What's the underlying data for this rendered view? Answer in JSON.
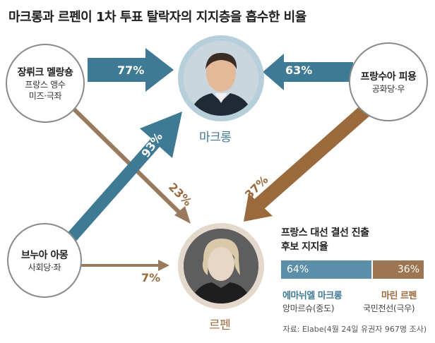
{
  "title": "마크롱과 르펜이 1차 투표 탈락자의 지지층을 흡수한 비율",
  "sources": {
    "melenchon": {
      "name": "장뤼크 멜랑숑",
      "party": "프랑스 앵수",
      "orientation": "미즈·극좌"
    },
    "fillon": {
      "name": "프랑수아 피용",
      "party": "공화당·우"
    },
    "hamon": {
      "name": "브누아 아몽",
      "party": "사회당·좌"
    }
  },
  "candidates": {
    "macron": {
      "name": "마크롱"
    },
    "lepen": {
      "name": "르펜"
    }
  },
  "flows": [
    {
      "from": "melenchon",
      "to": "macron",
      "pct": 77,
      "label": "77%"
    },
    {
      "from": "fillon",
      "to": "macron",
      "pct": 63,
      "label": "63%"
    },
    {
      "from": "hamon",
      "to": "macron",
      "pct": 93,
      "label": "93%"
    },
    {
      "from": "melenchon",
      "to": "lepen",
      "pct": 23,
      "label": "23%"
    },
    {
      "from": "fillon",
      "to": "lepen",
      "pct": 37,
      "label": "37%"
    },
    {
      "from": "hamon",
      "to": "lepen",
      "pct": 7,
      "label": "7%"
    }
  ],
  "support": {
    "title_line1": "프랑스 대선 결선 진출",
    "title_line2": "후보 지지율",
    "macron": {
      "pct": 64,
      "label": "64%",
      "name": "에마뉘엘 마크롱",
      "party": "앙마르슈(중도)"
    },
    "lepen": {
      "pct": 36,
      "label": "36%",
      "name": "마린 르펜",
      "party": "국민전선(극우)"
    }
  },
  "source": "자료: Elabe(4월 24일 유권자 967명 조사)",
  "colors": {
    "macron": "#3f7a94",
    "lepen": "#9a6a3d",
    "blue_bar": "#5b8ea8",
    "brown_bar": "#9c7553"
  }
}
